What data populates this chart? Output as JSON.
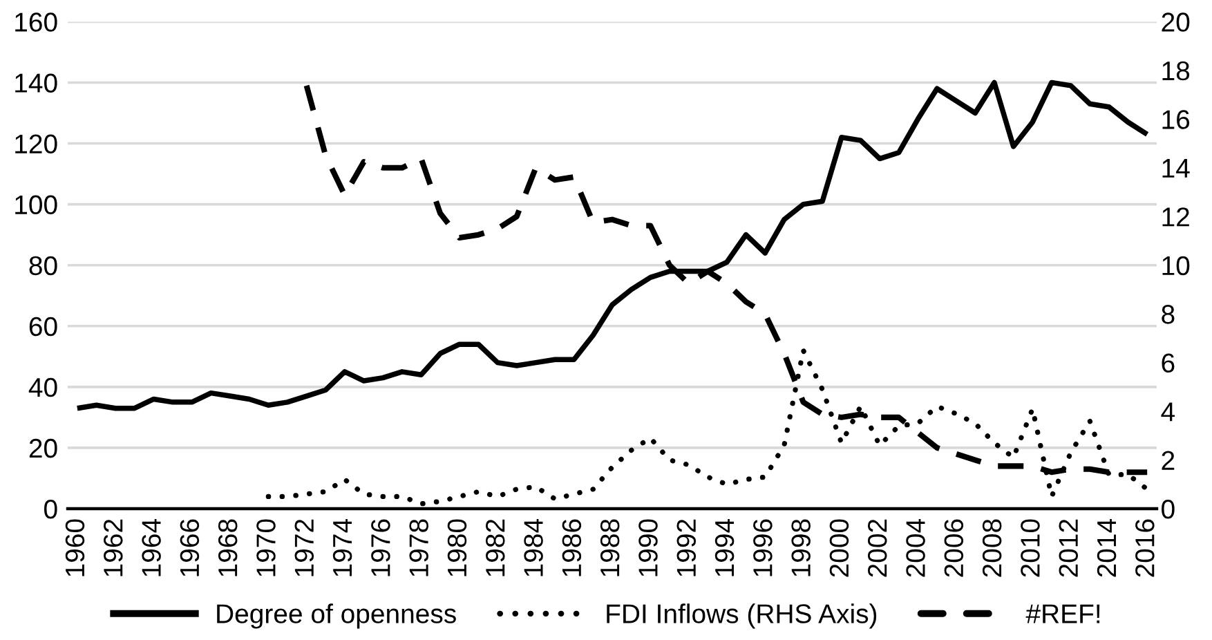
{
  "chart_data": {
    "type": "line",
    "categories": [
      "1960",
      null,
      "1962",
      null,
      "1964",
      null,
      "1966",
      null,
      "1968",
      null,
      "1970",
      null,
      "1972",
      null,
      "1974",
      null,
      "1976",
      null,
      "1978",
      null,
      "1980",
      null,
      "1982",
      null,
      "1984",
      null,
      "1986",
      null,
      "1988",
      null,
      "1990",
      null,
      "1992",
      null,
      "1994",
      null,
      "1996",
      null,
      "1998",
      null,
      "2000",
      null,
      "2002",
      null,
      "2004",
      null,
      "2006",
      null,
      "2008",
      null,
      "2010",
      null,
      "2012",
      null,
      "2014",
      null,
      "2016"
    ],
    "ylim": [
      0,
      160
    ],
    "yticks": [
      0,
      20,
      40,
      60,
      80,
      100,
      120,
      140,
      160
    ],
    "y2lim": [
      0,
      20
    ],
    "y2ticks": [
      0,
      2,
      4,
      6,
      8,
      10,
      12,
      14,
      16,
      18,
      20
    ],
    "grid": "y",
    "legend": "bottom",
    "series": [
      {
        "name": "Degree of openness",
        "color": "#000000",
        "line_style": "solid",
        "values": [
          33,
          34,
          33,
          33,
          36,
          35,
          35,
          38,
          37,
          36,
          34,
          35,
          37,
          39,
          45,
          42,
          43,
          45,
          44,
          51,
          54,
          54,
          48,
          47,
          48,
          49,
          49,
          57,
          67,
          72,
          76,
          78,
          78,
          78,
          81,
          90,
          84,
          95,
          100,
          101,
          122,
          121,
          115,
          117,
          128,
          138,
          134,
          130,
          140,
          119,
          127,
          140,
          139,
          133,
          132,
          127,
          123
        ]
      },
      {
        "name": "FDI Inflows (RHS Axis)",
        "color": "#000000",
        "line_style": "dotted",
        "axis": "y2",
        "values": [
          null,
          null,
          null,
          null,
          null,
          null,
          null,
          null,
          null,
          null,
          0.5,
          0.5,
          0.6,
          0.7,
          1.2,
          0.6,
          0.5,
          0.5,
          0.2,
          0.3,
          0.5,
          0.7,
          0.5,
          0.8,
          0.9,
          0.4,
          0.6,
          0.8,
          1.7,
          2.4,
          2.9,
          2.0,
          1.8,
          1.3,
          1.0,
          1.2,
          1.3,
          2.6,
          6.5,
          4.9,
          2.7,
          4.2,
          2.6,
          3.4,
          3.5,
          4.2,
          3.9,
          3.5,
          2.7,
          2.1,
          4.1,
          0.5,
          2.3,
          3.6,
          1.4,
          1.4,
          0.8
        ]
      },
      {
        "name": "#REF!",
        "color": "#000000",
        "line_style": "dashed",
        "values": [
          null,
          null,
          null,
          null,
          null,
          null,
          null,
          null,
          null,
          null,
          null,
          null,
          139,
          116,
          103,
          114,
          112,
          112,
          115,
          97,
          89,
          90,
          92,
          96,
          112,
          108,
          109,
          94,
          95,
          93,
          93,
          80,
          74,
          78,
          74,
          68,
          64,
          51,
          35,
          31,
          30,
          31,
          30,
          30,
          25,
          20,
          18,
          16,
          14,
          14,
          14,
          12,
          13,
          13,
          12,
          12,
          12
        ]
      }
    ]
  }
}
